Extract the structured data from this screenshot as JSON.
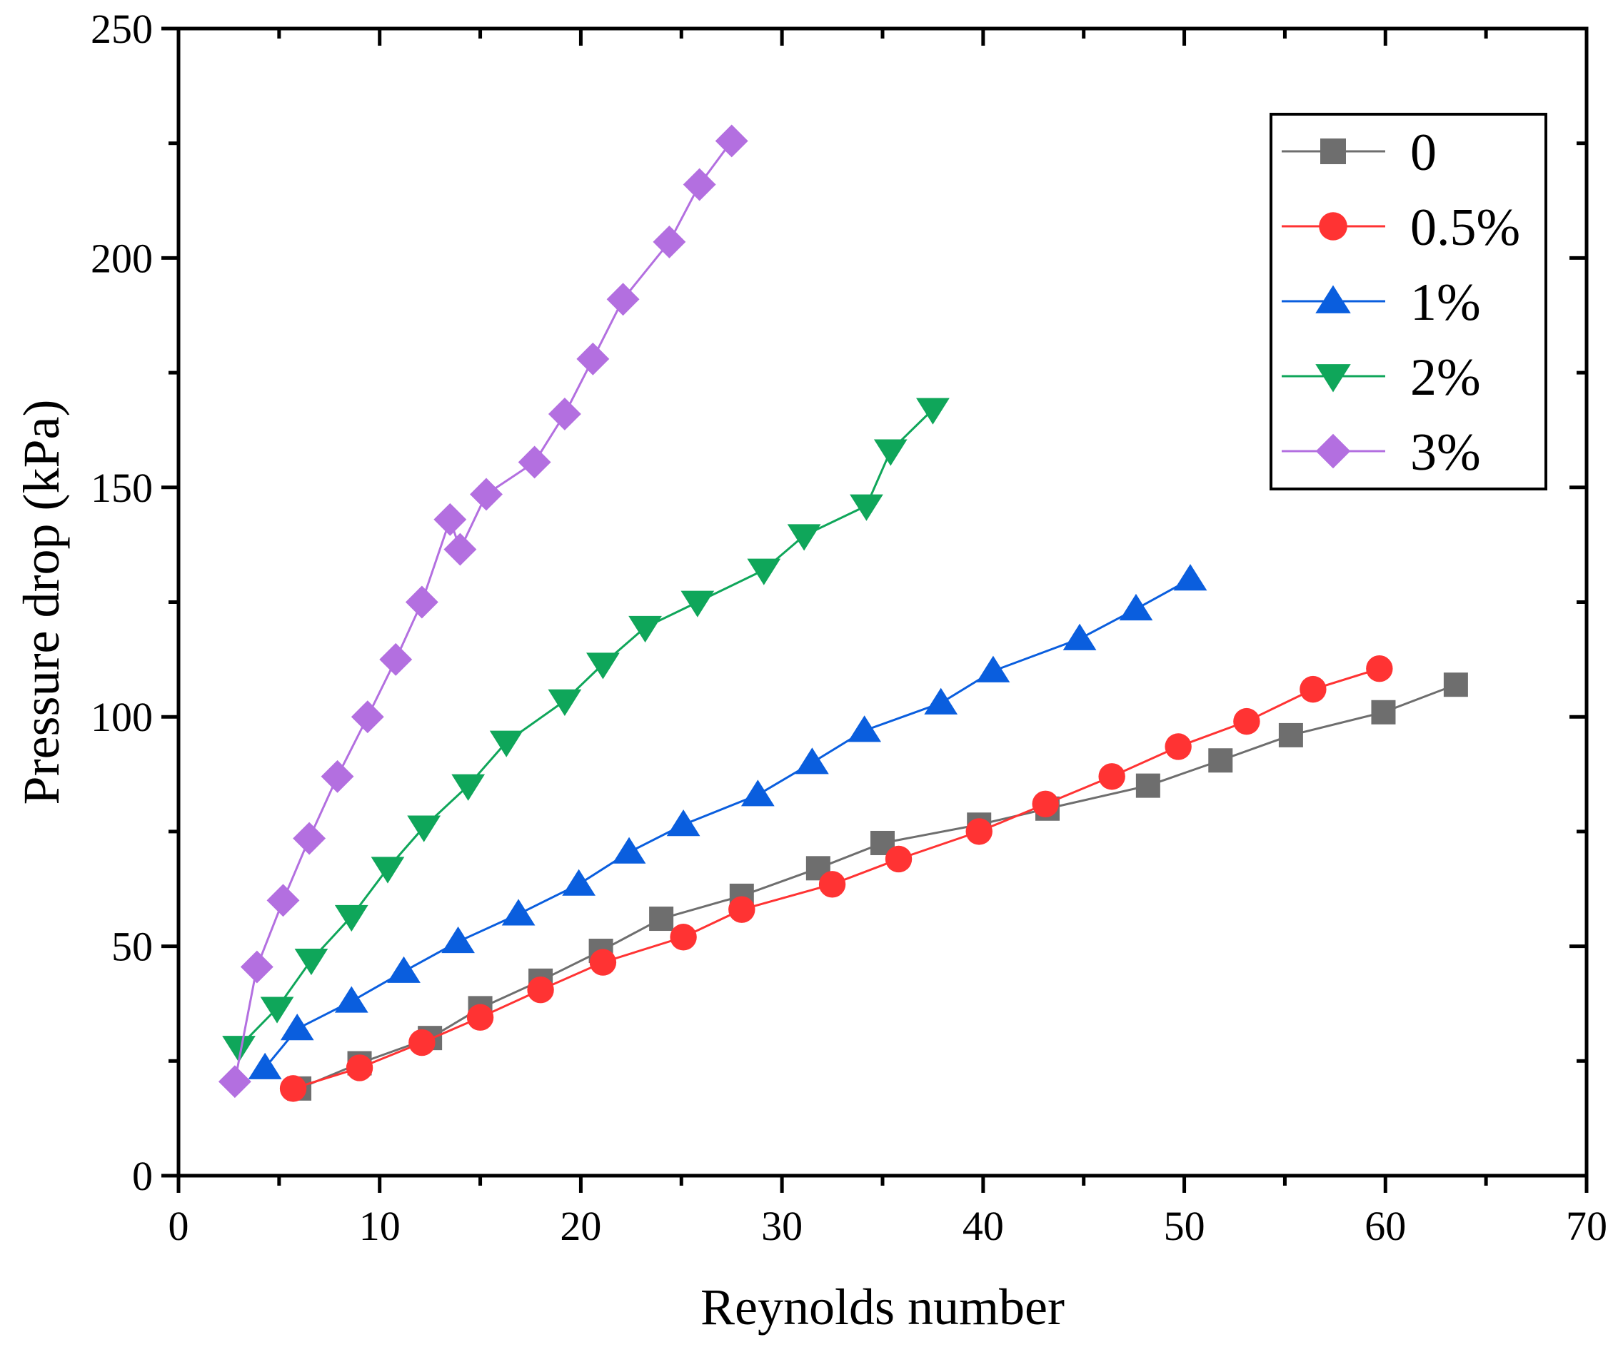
{
  "chart_data": {
    "type": "line",
    "title": "",
    "xlabel": "Reynolds number",
    "ylabel": "Pressure drop (kPa)",
    "xlim": [
      0,
      70
    ],
    "ylim": [
      0,
      250
    ],
    "xticks": [
      0,
      10,
      20,
      30,
      40,
      50,
      60,
      70
    ],
    "yticks": [
      0,
      50,
      100,
      150,
      200,
      250
    ],
    "legend_position": "top-right",
    "series": [
      {
        "name": "0",
        "color": "#6e6e6e",
        "marker": "square",
        "x": [
          6.0,
          9.0,
          12.5,
          15.0,
          18.0,
          21.0,
          24.0,
          28.0,
          31.8,
          35.0,
          39.8,
          43.2,
          48.2,
          51.8,
          55.3,
          59.9,
          63.5
        ],
        "y": [
          19,
          24.5,
          30,
          36.5,
          42.5,
          49,
          56,
          61,
          67,
          72.5,
          76.5,
          80,
          85,
          90.5,
          96,
          101,
          107
        ]
      },
      {
        "name": "0.5%",
        "color": "#ff3333",
        "marker": "circle",
        "x": [
          5.7,
          9.0,
          12.1,
          15.0,
          18.0,
          21.1,
          25.1,
          28.0,
          32.5,
          35.8,
          39.8,
          43.1,
          46.4,
          49.7,
          53.1,
          56.4,
          59.7
        ],
        "y": [
          19,
          23.5,
          29,
          34.5,
          40.5,
          46.5,
          52,
          58,
          63.5,
          69,
          75,
          81,
          87,
          93.5,
          99,
          106,
          110.5
        ]
      },
      {
        "name": "1%",
        "color": "#0a5ede",
        "marker": "triangle-up",
        "x": [
          4.3,
          5.9,
          8.6,
          11.2,
          13.9,
          16.9,
          19.9,
          22.4,
          25.1,
          28.8,
          31.5,
          34.1,
          37.9,
          40.5,
          44.8,
          47.6,
          50.3
        ],
        "y": [
          23.5,
          32,
          38,
          44.5,
          51,
          57,
          63.5,
          70.5,
          76.5,
          83,
          90,
          97,
          103,
          110,
          117,
          123.5,
          130
        ]
      },
      {
        "name": "2%",
        "color": "#0fa65a",
        "marker": "triangle-down",
        "x": [
          3.0,
          4.9,
          6.6,
          8.6,
          10.4,
          12.2,
          14.4,
          16.3,
          19.2,
          21.1,
          23.2,
          25.8,
          29.1,
          31.1,
          34.2,
          35.4,
          37.5
        ],
        "y": [
          28,
          36.5,
          47,
          56.5,
          67,
          76,
          85,
          94.5,
          103.5,
          111.5,
          119.5,
          125,
          132,
          139.5,
          146,
          158,
          167
        ]
      },
      {
        "name": "3%",
        "color": "#b36fe0",
        "marker": "diamond",
        "x": [
          2.8,
          3.9,
          5.2,
          6.5,
          7.9,
          9.4,
          10.8,
          12.1,
          13.5,
          14.0,
          15.3,
          17.7,
          19.2,
          20.6,
          22.1,
          24.4,
          25.9,
          27.5
        ],
        "y": [
          20.5,
          45.5,
          60,
          73.5,
          87,
          100,
          112.5,
          125,
          143,
          136.5,
          148.5,
          155.5,
          166,
          178,
          191,
          203.5,
          216,
          225.5
        ]
      }
    ]
  }
}
